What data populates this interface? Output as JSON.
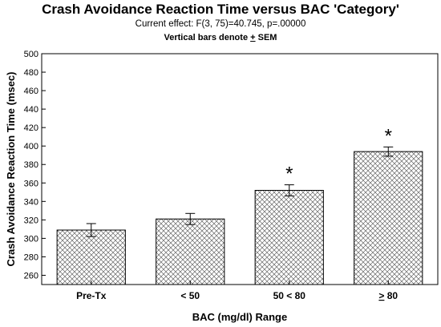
{
  "chart_data": {
    "type": "bar",
    "title": "Crash Avoidance Reaction Time versus BAC 'Category'",
    "subtitle": "Current effect: F(3, 75)=40.745, p=.00000",
    "note": "Vertical bars denote + SEM",
    "xlabel": "BAC (mg/dl) Range",
    "ylabel": "Crash Avoidance Reaction Time (msec)",
    "ylim": [
      250,
      500
    ],
    "yticks": [
      260,
      280,
      300,
      320,
      340,
      360,
      380,
      400,
      420,
      440,
      460,
      480,
      500
    ],
    "categories": [
      "Pre-Tx",
      "< 50",
      "50 < 80",
      "> 80"
    ],
    "values": [
      309,
      321,
      352,
      394
    ],
    "sem": [
      7,
      6,
      6,
      5
    ],
    "significance": [
      "",
      "",
      "*",
      "*"
    ],
    "underline_category": [
      false,
      false,
      false,
      true
    ],
    "grid": false,
    "bar_fill": "crosshatch",
    "bar_color": "#ffffff",
    "hatch_color": "#666666"
  }
}
